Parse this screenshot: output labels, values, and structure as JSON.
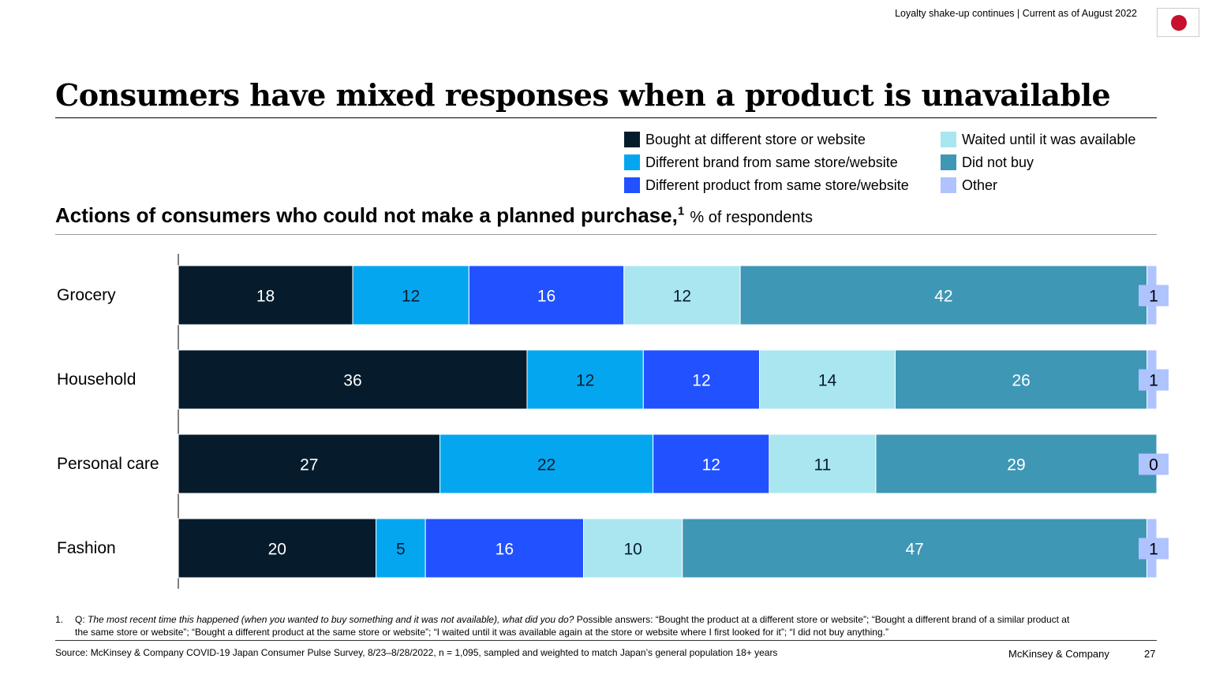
{
  "header": {
    "topline": "Loyalty shake-up continues | Current as of August 2022",
    "flag_icon": "japan-flag-icon"
  },
  "title": "Consumers have mixed responses when a product is unavailable",
  "chart_data": {
    "type": "bar",
    "orientation": "horizontal-stacked",
    "title": "Actions of consumers who could not make a planned purchase,",
    "title_footnote": "1",
    "unit": "% of respondents",
    "legend_placement": "top-right",
    "categories": [
      "Grocery",
      "Household",
      "Personal care",
      "Fashion"
    ],
    "series": [
      {
        "name": "Bought at different store or website",
        "color": "#061c2c",
        "label_color": "#ffffff",
        "values": [
          18,
          36,
          27,
          20
        ]
      },
      {
        "name": "Different brand from same store/website",
        "color": "#05a6f0",
        "label_color": "#061c2c",
        "values": [
          12,
          12,
          22,
          5
        ]
      },
      {
        "name": "Different product from same store/website",
        "color": "#2251ff",
        "label_color": "#ffffff",
        "values": [
          16,
          12,
          12,
          16
        ]
      },
      {
        "name": "Waited until it was available",
        "color": "#aae6f0",
        "label_color": "#061c2c",
        "values": [
          12,
          14,
          11,
          10
        ]
      },
      {
        "name": "Did not buy",
        "color": "#3e97b5",
        "label_color": "#ffffff",
        "values": [
          42,
          26,
          29,
          47
        ]
      },
      {
        "name": "Other",
        "color": "#afc3ff",
        "label_color": "#000000",
        "values": [
          1,
          1,
          0,
          1
        ]
      }
    ],
    "legend_order": [
      0,
      1,
      2,
      3,
      4,
      5
    ]
  },
  "footnote": {
    "number": "1.",
    "q_label": "Q:",
    "question": "The most recent time this happened (when you wanted to buy something and it was not available), what did you do?",
    "answers": "Possible answers: “Bought the product at a different store or website”; “Bought a different brand of a similar product at the same store or website”; “Bought a different product at the same store or website”; “I waited until it was available again at the store or website where I first looked for it”; “I did not buy anything.”"
  },
  "footer": {
    "source": "Source: McKinsey & Company COVID-19 Japan Consumer Pulse Survey, 8/23–8/28/2022, n = 1,095, sampled and weighted to match Japan’s general population 18+ years",
    "brand": "McKinsey & Company",
    "page": "27"
  }
}
